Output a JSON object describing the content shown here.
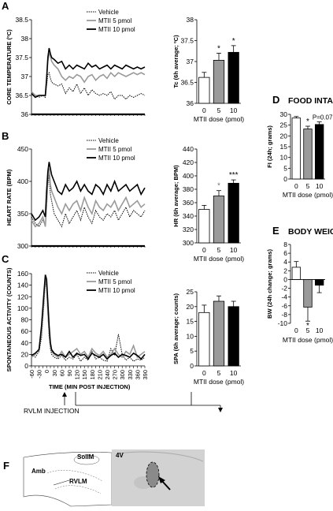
{
  "panel_labels": [
    "A",
    "B",
    "C",
    "D",
    "E",
    "F"
  ],
  "time_axis": {
    "label": "TIME (MIN POST INJECTION)",
    "ticks": [
      -60,
      -30,
      0,
      30,
      60,
      90,
      120,
      150,
      180,
      210,
      240,
      270,
      300,
      330,
      360,
      390
    ],
    "injection_label": "RVLM INJECTION"
  },
  "legend": {
    "vehicle": "Vehicle",
    "mtii5": "MTII 5 pmol",
    "mtii10": "MTII 10 pmol"
  },
  "colors": {
    "vehicle": "#000000",
    "mtii5": "#9a9a9a",
    "mtii10": "#000000"
  },
  "bar_colors": [
    "#ffffff",
    "#9a9a9a",
    "#000000"
  ],
  "dose_axis_label": "MTII dose (pmol)",
  "section_titles": {
    "food": "FOOD INTAKE",
    "weight": "BODY WEIGHT"
  },
  "chart_data": [
    {
      "id": "A-time",
      "type": "line",
      "ylabel": "CORE TEMPERATURE (ºC)",
      "ylim": [
        36,
        38.5
      ],
      "yticks": [
        "36",
        "36.5",
        "37",
        "37.5",
        "38",
        "38.5"
      ],
      "x": [
        -60,
        -45,
        -30,
        -15,
        -5,
        0,
        5,
        10,
        15,
        20,
        30,
        45,
        60,
        75,
        90,
        105,
        120,
        135,
        150,
        165,
        180,
        195,
        210,
        225,
        240,
        255,
        270,
        285,
        300,
        315,
        330,
        345,
        360,
        375,
        390
      ],
      "series": [
        {
          "name": "Vehicle",
          "key": "vehicle",
          "values": [
            36.55,
            36.5,
            36.45,
            36.5,
            36.45,
            36.75,
            37.05,
            37.1,
            36.95,
            36.85,
            36.8,
            36.75,
            36.8,
            36.55,
            36.7,
            36.6,
            36.8,
            36.55,
            36.7,
            36.5,
            36.65,
            36.55,
            36.5,
            36.55,
            36.5,
            36.6,
            36.4,
            36.5,
            36.5,
            36.4,
            36.5,
            36.45,
            36.5,
            36.55,
            36.5
          ]
        },
        {
          "name": "MTII 5 pmol",
          "key": "mtii5",
          "values": [
            36.6,
            36.5,
            36.5,
            36.5,
            36.5,
            36.9,
            37.4,
            37.6,
            37.55,
            37.4,
            37.3,
            37.2,
            37.0,
            36.9,
            37.0,
            36.95,
            37.05,
            37.0,
            36.85,
            37.0,
            37.05,
            36.9,
            37.0,
            37.05,
            36.95,
            37.1,
            37.0,
            37.1,
            37.05,
            37.0,
            37.05,
            37.1,
            37.05,
            37.1,
            37.05
          ]
        },
        {
          "name": "MTII 10 pmol",
          "key": "mtii10",
          "values": [
            36.55,
            36.45,
            36.5,
            36.5,
            36.5,
            36.95,
            37.5,
            37.75,
            37.6,
            37.5,
            37.45,
            37.35,
            37.4,
            37.2,
            37.3,
            37.2,
            37.3,
            37.25,
            37.2,
            37.35,
            37.25,
            37.3,
            37.2,
            37.25,
            37.3,
            37.2,
            37.3,
            37.25,
            37.2,
            37.3,
            37.25,
            37.2,
            37.25,
            37.2,
            37.25
          ]
        }
      ]
    },
    {
      "id": "A-bar",
      "type": "bar",
      "ylabel": "Tc (6h average; ºC)",
      "ylim": [
        36,
        38
      ],
      "yticks": [
        "36",
        "36.5",
        "37",
        "37.5",
        "38"
      ],
      "categories": [
        "0",
        "5",
        "10"
      ],
      "values": [
        36.62,
        37.03,
        37.22
      ],
      "errors": [
        0.12,
        0.17,
        0.16
      ],
      "annotations": [
        "",
        "*",
        "*"
      ]
    },
    {
      "id": "B-time",
      "type": "line",
      "ylabel": "HEART RATE (BPM)",
      "ylim": [
        300,
        450
      ],
      "yticks": [
        "300",
        "350",
        "400",
        "450"
      ],
      "x": [
        -60,
        -45,
        -30,
        -15,
        -5,
        0,
        5,
        10,
        15,
        20,
        30,
        45,
        60,
        75,
        90,
        105,
        120,
        135,
        150,
        165,
        180,
        195,
        210,
        225,
        240,
        255,
        270,
        285,
        300,
        315,
        330,
        345,
        360,
        375,
        390
      ],
      "series": [
        {
          "name": "Vehicle",
          "key": "vehicle",
          "values": [
            345,
            335,
            330,
            340,
            332,
            360,
            395,
            410,
            380,
            370,
            350,
            340,
            330,
            350,
            335,
            345,
            355,
            340,
            360,
            345,
            335,
            355,
            345,
            340,
            350,
            345,
            355,
            340,
            350,
            360,
            345,
            355,
            350,
            345,
            355
          ]
        },
        {
          "name": "MTII 5 pmol",
          "key": "mtii5",
          "values": [
            340,
            330,
            335,
            345,
            330,
            365,
            405,
            420,
            395,
            385,
            375,
            360,
            350,
            365,
            355,
            365,
            370,
            355,
            375,
            360,
            350,
            370,
            360,
            355,
            365,
            360,
            370,
            355,
            365,
            375,
            360,
            365,
            370,
            360,
            365
          ]
        },
        {
          "name": "MTII 10 pmol",
          "key": "mtii10",
          "values": [
            350,
            340,
            345,
            355,
            345,
            385,
            415,
            430,
            420,
            410,
            400,
            385,
            380,
            395,
            385,
            390,
            400,
            385,
            395,
            385,
            380,
            395,
            390,
            380,
            395,
            385,
            400,
            385,
            390,
            395,
            385,
            390,
            395,
            380,
            390
          ]
        }
      ]
    },
    {
      "id": "B-bar",
      "type": "bar",
      "ylabel": "HR (6h average; BPM)",
      "ylim": [
        300,
        440
      ],
      "yticks": [
        "300",
        "320",
        "340",
        "360",
        "380",
        "400",
        "420",
        "440"
      ],
      "categories": [
        "0",
        "5",
        "10"
      ],
      "values": [
        350,
        370,
        389
      ],
      "errors": [
        6,
        8,
        5
      ],
      "annotations": [
        "",
        "*",
        "***"
      ]
    },
    {
      "id": "C-time",
      "type": "line",
      "ylabel": "SPONTANEOUS ACTIVITY (COUNTS)",
      "ylim": [
        0,
        160
      ],
      "yticks": [
        "0",
        "20",
        "40",
        "60",
        "80",
        "100",
        "120",
        "140",
        "160"
      ],
      "x": [
        -60,
        -45,
        -30,
        -20,
        -10,
        -5,
        0,
        5,
        10,
        15,
        20,
        30,
        45,
        60,
        75,
        90,
        105,
        120,
        135,
        150,
        165,
        180,
        195,
        210,
        225,
        240,
        255,
        270,
        285,
        300,
        315,
        330,
        345,
        360,
        375,
        390
      ],
      "series": [
        {
          "name": "Vehicle",
          "key": "vehicle",
          "values": [
            20,
            15,
            25,
            50,
            110,
            145,
            135,
            90,
            50,
            30,
            20,
            15,
            12,
            18,
            10,
            15,
            12,
            20,
            8,
            15,
            10,
            25,
            12,
            15,
            10,
            8,
            30,
            18,
            55,
            20,
            10,
            15,
            8,
            12,
            10,
            15
          ]
        },
        {
          "name": "MTII 5 pmol",
          "key": "mtii5",
          "values": [
            15,
            20,
            30,
            60,
            120,
            150,
            140,
            95,
            60,
            35,
            25,
            20,
            15,
            25,
            15,
            20,
            25,
            30,
            20,
            25,
            15,
            30,
            22,
            18,
            25,
            15,
            20,
            30,
            20,
            15,
            25,
            20,
            35,
            15,
            20,
            25
          ]
        },
        {
          "name": "MTII 10 pmol",
          "key": "mtii10",
          "values": [
            18,
            22,
            28,
            70,
            130,
            158,
            150,
            110,
            70,
            40,
            28,
            22,
            18,
            20,
            15,
            25,
            15,
            22,
            18,
            20,
            12,
            22,
            18,
            15,
            20,
            12,
            18,
            22,
            15,
            20,
            18,
            15,
            22,
            18,
            12,
            20
          ]
        }
      ]
    },
    {
      "id": "C-bar",
      "type": "bar",
      "ylabel": "SPA (6h average; counts)",
      "ylim": [
        0,
        25
      ],
      "yticks": [
        "0",
        "5",
        "10",
        "15",
        "20",
        "25"
      ],
      "categories": [
        "0",
        "5",
        "10"
      ],
      "values": [
        18,
        21.8,
        20
      ],
      "errors": [
        2.5,
        1.8,
        1.8
      ],
      "annotations": [
        "",
        "",
        ""
      ]
    },
    {
      "id": "D",
      "type": "bar",
      "ylabel": "FI (24h; grams)",
      "ylim": [
        0,
        30
      ],
      "yticks": [
        "0",
        "5",
        "10",
        "15",
        "20",
        "25",
        "30"
      ],
      "categories": [
        "0",
        "5",
        "10"
      ],
      "values": [
        28.3,
        23.2,
        25.3
      ],
      "errors": [
        0.7,
        1.3,
        1.2
      ],
      "annotations": [
        "",
        "*",
        "P=0.07"
      ]
    },
    {
      "id": "E",
      "type": "bar",
      "ylabel": "BW (24h change; grams)",
      "ylim": [
        -10,
        8
      ],
      "yticks": [
        "-10",
        "-8",
        "-6",
        "-4",
        "-2",
        "0",
        "2",
        "4",
        "6",
        "8"
      ],
      "categories": [
        "0",
        "5",
        "10"
      ],
      "values": [
        2.8,
        -6.3,
        -1.3
      ],
      "errors": [
        1.3,
        3.2,
        1.7
      ],
      "annotations": [
        "",
        "*",
        ""
      ]
    }
  ],
  "panel_f": {
    "labels": {
      "sol": "SolIM",
      "amb": "Amb",
      "rvlm": "RVLM",
      "v4": "4V"
    }
  }
}
